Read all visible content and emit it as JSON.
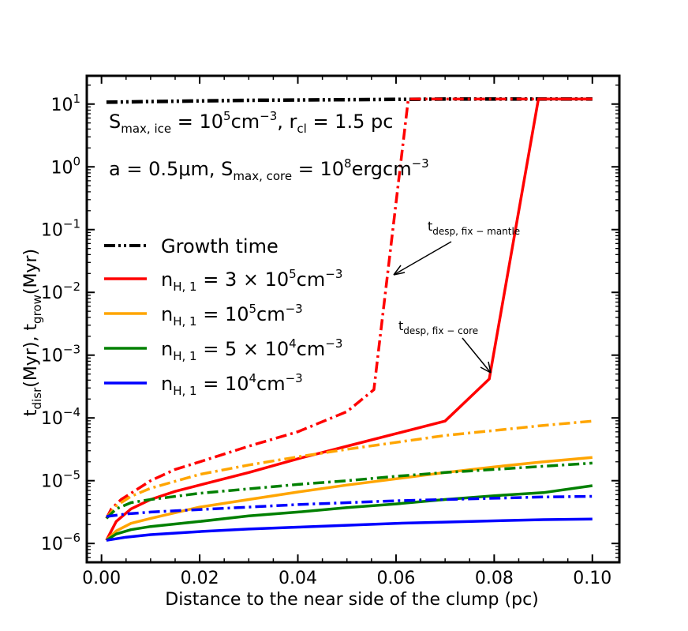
{
  "chart_data": {
    "type": "line",
    "xlabel": "Distance to the near side of the clump (pc)",
    "ylabel": {
      "t1": "t",
      "s1": "disr",
      "m1": "(Myr),  t",
      "s2": "grow",
      "m2": "(Myr)"
    },
    "xlim": [
      -0.003,
      0.1055
    ],
    "ylim_log10": [
      -6.3,
      1.45
    ],
    "x_ticks": [
      0.0,
      0.02,
      0.04,
      0.06,
      0.08,
      0.1
    ],
    "x_tick_labels": [
      "0.00",
      "0.02",
      "0.04",
      "0.06",
      "0.08",
      "0.10"
    ],
    "y_ticks_log10": [
      -6,
      -5,
      -4,
      -3,
      -2,
      -1,
      0,
      1
    ],
    "y_tick_base": "10",
    "y_tick_exponents": [
      "−6",
      "−5",
      "−4",
      "−3",
      "−2",
      "−1",
      "0",
      "1"
    ],
    "annotations_params": {
      "line1": {
        "a": "S",
        "b": "max, ice",
        "c": " = 10",
        "d": "5",
        "e": "cm",
        "f": "−3",
        "g": ", r",
        "h": "cl",
        "i": " = 1.5 pc"
      },
      "line2": {
        "a": "a = 0.5μm, S",
        "b": "max, core",
        "c": " = 10",
        "d": "8",
        "e": "ergcm",
        "f": "−3"
      }
    },
    "arrow_labels": [
      {
        "t": "t",
        "s": "desp, fix − mantle"
      },
      {
        "t": "t",
        "s": "desp, fix − core"
      }
    ],
    "legend": [
      {
        "label_main": "Growth time",
        "color": "#000000",
        "style": "dashdotdot"
      },
      {
        "n": "n",
        "s": "H, 1",
        "rest": " = 3 × 10",
        "e": "5",
        "u": "cm",
        "ue": "−3",
        "color": "#ff0000",
        "style": "solid"
      },
      {
        "n": "n",
        "s": "H, 1",
        "rest": " = 10",
        "e": "5",
        "u": "cm",
        "ue": "−3",
        "color": "#ffa500",
        "style": "solid"
      },
      {
        "n": "n",
        "s": "H, 1",
        "rest": " = 5 × 10",
        "e": "4",
        "u": "cm",
        "ue": "−3",
        "color": "#008000",
        "style": "solid"
      },
      {
        "n": "n",
        "s": "H, 1",
        "rest": " = 10",
        "e": "4",
        "u": "cm",
        "ue": "−3",
        "color": "#0000ff",
        "style": "solid"
      }
    ],
    "series": [
      {
        "name": "growth-time",
        "color": "#000000",
        "style": "dashdotdot",
        "x": [
          0.001,
          0.01,
          0.02,
          0.03,
          0.04,
          0.05,
          0.06,
          0.07,
          0.08,
          0.09,
          0.1
        ],
        "log10y": [
          1.03,
          1.04,
          1.05,
          1.06,
          1.065,
          1.07,
          1.075,
          1.08,
          1.08,
          1.08,
          1.08
        ]
      },
      {
        "name": "red-dashdot",
        "color": "#ff0000",
        "style": "dashdot",
        "x": [
          0.001,
          0.002,
          0.004,
          0.006,
          0.01,
          0.015,
          0.02,
          0.03,
          0.04,
          0.05,
          0.0555,
          0.0625,
          0.07,
          0.08,
          0.09,
          0.1
        ],
        "log10y": [
          -5.6,
          -5.45,
          -5.3,
          -5.2,
          -5.0,
          -4.82,
          -4.7,
          -4.45,
          -4.22,
          -3.9,
          -3.55,
          1.08,
          1.08,
          1.08,
          1.08,
          1.08
        ]
      },
      {
        "name": "red-solid",
        "color": "#ff0000",
        "style": "solid",
        "x": [
          0.001,
          0.003,
          0.006,
          0.01,
          0.015,
          0.02,
          0.03,
          0.04,
          0.05,
          0.06,
          0.07,
          0.079,
          0.089,
          0.1
        ],
        "log10y": [
          -5.95,
          -5.65,
          -5.45,
          -5.3,
          -5.17,
          -5.07,
          -4.87,
          -4.65,
          -4.45,
          -4.25,
          -4.05,
          -3.38,
          1.08,
          1.08
        ]
      },
      {
        "name": "orange-dashdot",
        "color": "#ffa500",
        "style": "dashdot",
        "x": [
          0.001,
          0.003,
          0.006,
          0.01,
          0.02,
          0.03,
          0.04,
          0.05,
          0.06,
          0.07,
          0.08,
          0.09,
          0.1
        ],
        "log10y": [
          -5.6,
          -5.4,
          -5.25,
          -5.12,
          -4.9,
          -4.75,
          -4.62,
          -4.5,
          -4.39,
          -4.28,
          -4.2,
          -4.12,
          -4.05
        ]
      },
      {
        "name": "orange-solid",
        "color": "#ffa500",
        "style": "solid",
        "x": [
          0.001,
          0.003,
          0.006,
          0.01,
          0.02,
          0.03,
          0.04,
          0.05,
          0.06,
          0.07,
          0.08,
          0.09,
          0.1
        ],
        "log10y": [
          -5.95,
          -5.8,
          -5.68,
          -5.6,
          -5.42,
          -5.3,
          -5.18,
          -5.07,
          -4.97,
          -4.87,
          -4.78,
          -4.7,
          -4.63
        ]
      },
      {
        "name": "green-dashdot",
        "color": "#008000",
        "style": "dashdot",
        "x": [
          0.001,
          0.003,
          0.006,
          0.01,
          0.02,
          0.03,
          0.04,
          0.05,
          0.06,
          0.07,
          0.08,
          0.09,
          0.1
        ],
        "log10y": [
          -5.6,
          -5.45,
          -5.35,
          -5.3,
          -5.2,
          -5.13,
          -5.06,
          -5.0,
          -4.93,
          -4.87,
          -4.82,
          -4.77,
          -4.72
        ]
      },
      {
        "name": "green-solid",
        "color": "#008000",
        "style": "solid",
        "x": [
          0.001,
          0.003,
          0.006,
          0.01,
          0.02,
          0.03,
          0.04,
          0.05,
          0.06,
          0.07,
          0.08,
          0.09,
          0.1
        ],
        "log10y": [
          -5.95,
          -5.85,
          -5.78,
          -5.73,
          -5.65,
          -5.56,
          -5.5,
          -5.43,
          -5.37,
          -5.3,
          -5.24,
          -5.19,
          -5.08
        ]
      },
      {
        "name": "blue-dashdot",
        "color": "#0000ff",
        "style": "dashdot",
        "x": [
          0.001,
          0.005,
          0.01,
          0.02,
          0.03,
          0.04,
          0.05,
          0.06,
          0.07,
          0.08,
          0.09,
          0.1
        ],
        "log10y": [
          -5.57,
          -5.53,
          -5.5,
          -5.46,
          -5.42,
          -5.38,
          -5.35,
          -5.32,
          -5.3,
          -5.28,
          -5.26,
          -5.25
        ]
      },
      {
        "name": "blue-solid",
        "color": "#0000ff",
        "style": "solid",
        "x": [
          0.001,
          0.005,
          0.01,
          0.02,
          0.03,
          0.04,
          0.05,
          0.06,
          0.07,
          0.08,
          0.09,
          0.1
        ],
        "log10y": [
          -5.95,
          -5.9,
          -5.86,
          -5.81,
          -5.77,
          -5.74,
          -5.71,
          -5.68,
          -5.66,
          -5.64,
          -5.62,
          -5.61
        ]
      }
    ]
  }
}
